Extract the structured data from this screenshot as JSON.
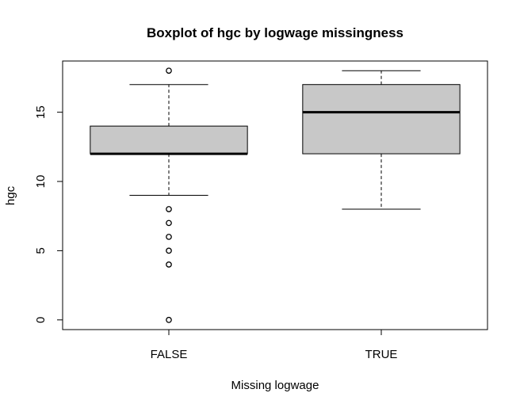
{
  "chart_data": {
    "type": "boxplot",
    "title": "Boxplot of hgc by logwage missingness",
    "xlabel": "Missing logwage",
    "ylabel": "hgc",
    "categories": [
      "FALSE",
      "TRUE"
    ],
    "ylim": [
      -0.7,
      18.7
    ],
    "yticks": [
      0,
      5,
      10,
      15
    ],
    "boxes": [
      {
        "category": "FALSE",
        "whisker_low": 9,
        "q1": 12,
        "median": 12,
        "q3": 14,
        "whisker_high": 17,
        "outliers": [
          18,
          8,
          7,
          6,
          5,
          4,
          0
        ]
      },
      {
        "category": "TRUE",
        "whisker_low": 8,
        "q1": 12,
        "median": 15,
        "q3": 17,
        "whisker_high": 18,
        "outliers": []
      }
    ],
    "box_fill": "#c8c8c8"
  }
}
